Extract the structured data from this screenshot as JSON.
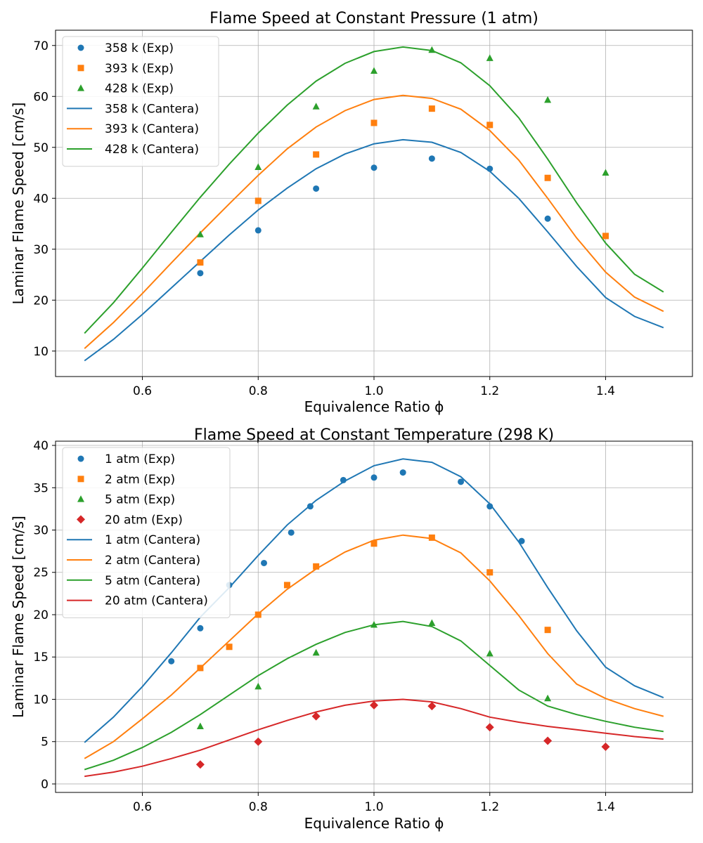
{
  "chart_data": [
    {
      "type": "line",
      "title": "Flame Speed at Constant Pressure (1 atm)",
      "xlabel": "Equivalence Ratio ϕ",
      "ylabel": "Laminar Flame Speed [cm/s]",
      "xlim": [
        0.45,
        1.55
      ],
      "ylim": [
        5,
        73
      ],
      "xticks": [
        0.6,
        0.8,
        1.0,
        1.2,
        1.4
      ],
      "xtick_labels": [
        "0.6",
        "0.8",
        "1.0",
        "1.2",
        "1.4"
      ],
      "yticks": [
        10,
        20,
        30,
        40,
        50,
        60,
        70
      ],
      "ytick_labels": [
        "10",
        "20",
        "30",
        "40",
        "50",
        "60",
        "70"
      ],
      "grid": true,
      "legend_position": "upper-left",
      "series": [
        {
          "name": "358 k (Exp)",
          "kind": "scatter",
          "marker": "circle",
          "color": "#1f77b4",
          "x": [
            0.7,
            0.8,
            0.9,
            1.0,
            1.1,
            1.2,
            1.3
          ],
          "y": [
            25.3,
            33.7,
            41.9,
            46.0,
            47.8,
            45.8,
            36.0
          ]
        },
        {
          "name": "393 k (Exp)",
          "kind": "scatter",
          "marker": "square",
          "color": "#ff7f0e",
          "x": [
            0.7,
            0.8,
            0.9,
            1.0,
            1.1,
            1.2,
            1.3,
            1.4
          ],
          "y": [
            27.4,
            39.5,
            48.6,
            54.8,
            57.6,
            54.4,
            44.0,
            32.6
          ]
        },
        {
          "name": "428 k (Exp)",
          "kind": "scatter",
          "marker": "triangle",
          "color": "#2ca02c",
          "x": [
            0.7,
            0.8,
            0.9,
            1.0,
            1.1,
            1.2,
            1.3,
            1.4
          ],
          "y": [
            32.9,
            46.1,
            58.0,
            65.0,
            69.1,
            67.5,
            59.3,
            45.0
          ]
        },
        {
          "name": "358 k (Cantera)",
          "kind": "line",
          "color": "#1f77b4",
          "x": [
            0.5,
            0.55,
            0.6,
            0.65,
            0.7,
            0.75,
            0.8,
            0.85,
            0.9,
            0.95,
            1.0,
            1.05,
            1.1,
            1.15,
            1.2,
            1.25,
            1.3,
            1.35,
            1.4,
            1.45,
            1.5
          ],
          "y": [
            8.1,
            12.3,
            17.2,
            22.4,
            27.6,
            32.8,
            37.7,
            42.0,
            45.8,
            48.7,
            50.7,
            51.5,
            51.0,
            49.0,
            45.3,
            40.0,
            33.4,
            26.6,
            20.5,
            16.8,
            14.6
          ]
        },
        {
          "name": "393 k (Cantera)",
          "kind": "line",
          "color": "#ff7f0e",
          "x": [
            0.5,
            0.55,
            0.6,
            0.65,
            0.7,
            0.75,
            0.8,
            0.85,
            0.9,
            0.95,
            1.0,
            1.05,
            1.1,
            1.15,
            1.2,
            1.25,
            1.3,
            1.35,
            1.4,
            1.45,
            1.5
          ],
          "y": [
            10.5,
            15.6,
            21.3,
            27.3,
            33.2,
            38.9,
            44.5,
            49.7,
            54.0,
            57.2,
            59.4,
            60.2,
            59.6,
            57.5,
            53.3,
            47.5,
            40.0,
            32.2,
            25.5,
            20.6,
            17.8
          ]
        },
        {
          "name": "428 k (Cantera)",
          "kind": "line",
          "color": "#2ca02c",
          "x": [
            0.5,
            0.55,
            0.6,
            0.65,
            0.7,
            0.75,
            0.8,
            0.85,
            0.9,
            0.95,
            1.0,
            1.05,
            1.1,
            1.15,
            1.2,
            1.25,
            1.3,
            1.35,
            1.4,
            1.45,
            1.5
          ],
          "y": [
            13.5,
            19.5,
            26.3,
            33.3,
            40.2,
            46.7,
            52.8,
            58.3,
            63.0,
            66.5,
            68.8,
            69.7,
            69.0,
            66.6,
            62.1,
            55.8,
            47.7,
            39.1,
            31.2,
            25.1,
            21.6
          ]
        }
      ]
    },
    {
      "type": "line",
      "title": "Flame Speed at Constant Temperature (298 K)",
      "xlabel": "Equivalence Ratio ϕ",
      "ylabel": "Laminar Flame Speed [cm/s]",
      "xlim": [
        0.45,
        1.55
      ],
      "ylim": [
        -1,
        40.5
      ],
      "xticks": [
        0.6,
        0.8,
        1.0,
        1.2,
        1.4
      ],
      "xtick_labels": [
        "0.6",
        "0.8",
        "1.0",
        "1.2",
        "1.4"
      ],
      "yticks": [
        0,
        5,
        10,
        15,
        20,
        25,
        30,
        35,
        40
      ],
      "ytick_labels": [
        "0",
        "5",
        "10",
        "15",
        "20",
        "25",
        "30",
        "35",
        "40"
      ],
      "grid": true,
      "legend_position": "upper-left",
      "series": [
        {
          "name": "1 atm (Exp)",
          "kind": "scatter",
          "marker": "circle",
          "color": "#1f77b4",
          "x": [
            0.65,
            0.7,
            0.75,
            0.81,
            0.857,
            0.89,
            0.947,
            1.0,
            1.05,
            1.15,
            1.2,
            1.255
          ],
          "y": [
            14.5,
            18.4,
            23.5,
            26.1,
            29.7,
            32.8,
            35.9,
            36.2,
            36.8,
            35.7,
            32.8,
            28.7
          ]
        },
        {
          "name": "2 atm (Exp)",
          "kind": "scatter",
          "marker": "square",
          "color": "#ff7f0e",
          "x": [
            0.7,
            0.75,
            0.8,
            0.85,
            0.9,
            1.0,
            1.1,
            1.2,
            1.3
          ],
          "y": [
            13.7,
            16.2,
            20.0,
            23.5,
            25.7,
            28.4,
            29.1,
            25.0,
            18.2
          ]
        },
        {
          "name": "5 atm (Exp)",
          "kind": "scatter",
          "marker": "triangle",
          "color": "#2ca02c",
          "x": [
            0.7,
            0.8,
            0.9,
            1.0,
            1.1,
            1.2,
            1.3
          ],
          "y": [
            6.8,
            11.5,
            15.5,
            18.8,
            19.0,
            15.4,
            10.1
          ]
        },
        {
          "name": "20 atm (Exp)",
          "kind": "scatter",
          "marker": "diamond",
          "color": "#d62728",
          "x": [
            0.7,
            0.8,
            0.9,
            1.0,
            1.1,
            1.2,
            1.3,
            1.4
          ],
          "y": [
            2.3,
            5.0,
            8.0,
            9.3,
            9.2,
            6.7,
            5.1,
            4.4
          ]
        },
        {
          "name": "1 atm (Cantera)",
          "kind": "line",
          "color": "#1f77b4",
          "x": [
            0.5,
            0.55,
            0.6,
            0.65,
            0.7,
            0.75,
            0.8,
            0.85,
            0.9,
            0.95,
            1.0,
            1.05,
            1.1,
            1.15,
            1.2,
            1.25,
            1.3,
            1.35,
            1.4,
            1.45,
            1.5
          ],
          "y": [
            4.9,
            7.9,
            11.5,
            15.5,
            19.7,
            23.2,
            27.0,
            30.6,
            33.5,
            35.8,
            37.6,
            38.4,
            38.0,
            36.3,
            33.1,
            28.6,
            23.2,
            18.1,
            13.8,
            11.6,
            10.2
          ]
        },
        {
          "name": "2 atm (Cantera)",
          "kind": "line",
          "color": "#ff7f0e",
          "x": [
            0.5,
            0.55,
            0.6,
            0.65,
            0.7,
            0.75,
            0.8,
            0.85,
            0.9,
            0.95,
            1.0,
            1.05,
            1.1,
            1.15,
            1.2,
            1.25,
            1.3,
            1.35,
            1.4,
            1.45,
            1.5
          ],
          "y": [
            3.0,
            5.0,
            7.7,
            10.5,
            13.7,
            16.9,
            20.1,
            23.0,
            25.4,
            27.4,
            28.8,
            29.4,
            29.0,
            27.3,
            24.0,
            19.9,
            15.4,
            11.8,
            10.1,
            8.9,
            8.0
          ]
        },
        {
          "name": "5 atm (Cantera)",
          "kind": "line",
          "color": "#2ca02c",
          "x": [
            0.5,
            0.55,
            0.6,
            0.65,
            0.7,
            0.75,
            0.8,
            0.85,
            0.9,
            0.95,
            1.0,
            1.05,
            1.1,
            1.15,
            1.2,
            1.25,
            1.3,
            1.35,
            1.4,
            1.45,
            1.5
          ],
          "y": [
            1.7,
            2.8,
            4.3,
            6.1,
            8.2,
            10.5,
            12.8,
            14.8,
            16.5,
            17.9,
            18.8,
            19.2,
            18.6,
            16.9,
            14.0,
            11.1,
            9.2,
            8.2,
            7.4,
            6.7,
            6.2
          ]
        },
        {
          "name": "20 atm (Cantera)",
          "kind": "line",
          "color": "#d62728",
          "x": [
            0.5,
            0.55,
            0.6,
            0.65,
            0.7,
            0.75,
            0.8,
            0.85,
            0.9,
            0.95,
            1.0,
            1.05,
            1.1,
            1.15,
            1.2,
            1.25,
            1.3,
            1.35,
            1.4,
            1.45,
            1.5
          ],
          "y": [
            0.9,
            1.4,
            2.1,
            3.0,
            4.0,
            5.2,
            6.4,
            7.5,
            8.5,
            9.3,
            9.8,
            10.0,
            9.7,
            8.9,
            7.9,
            7.3,
            6.8,
            6.4,
            6.0,
            5.6,
            5.3
          ]
        }
      ]
    }
  ]
}
